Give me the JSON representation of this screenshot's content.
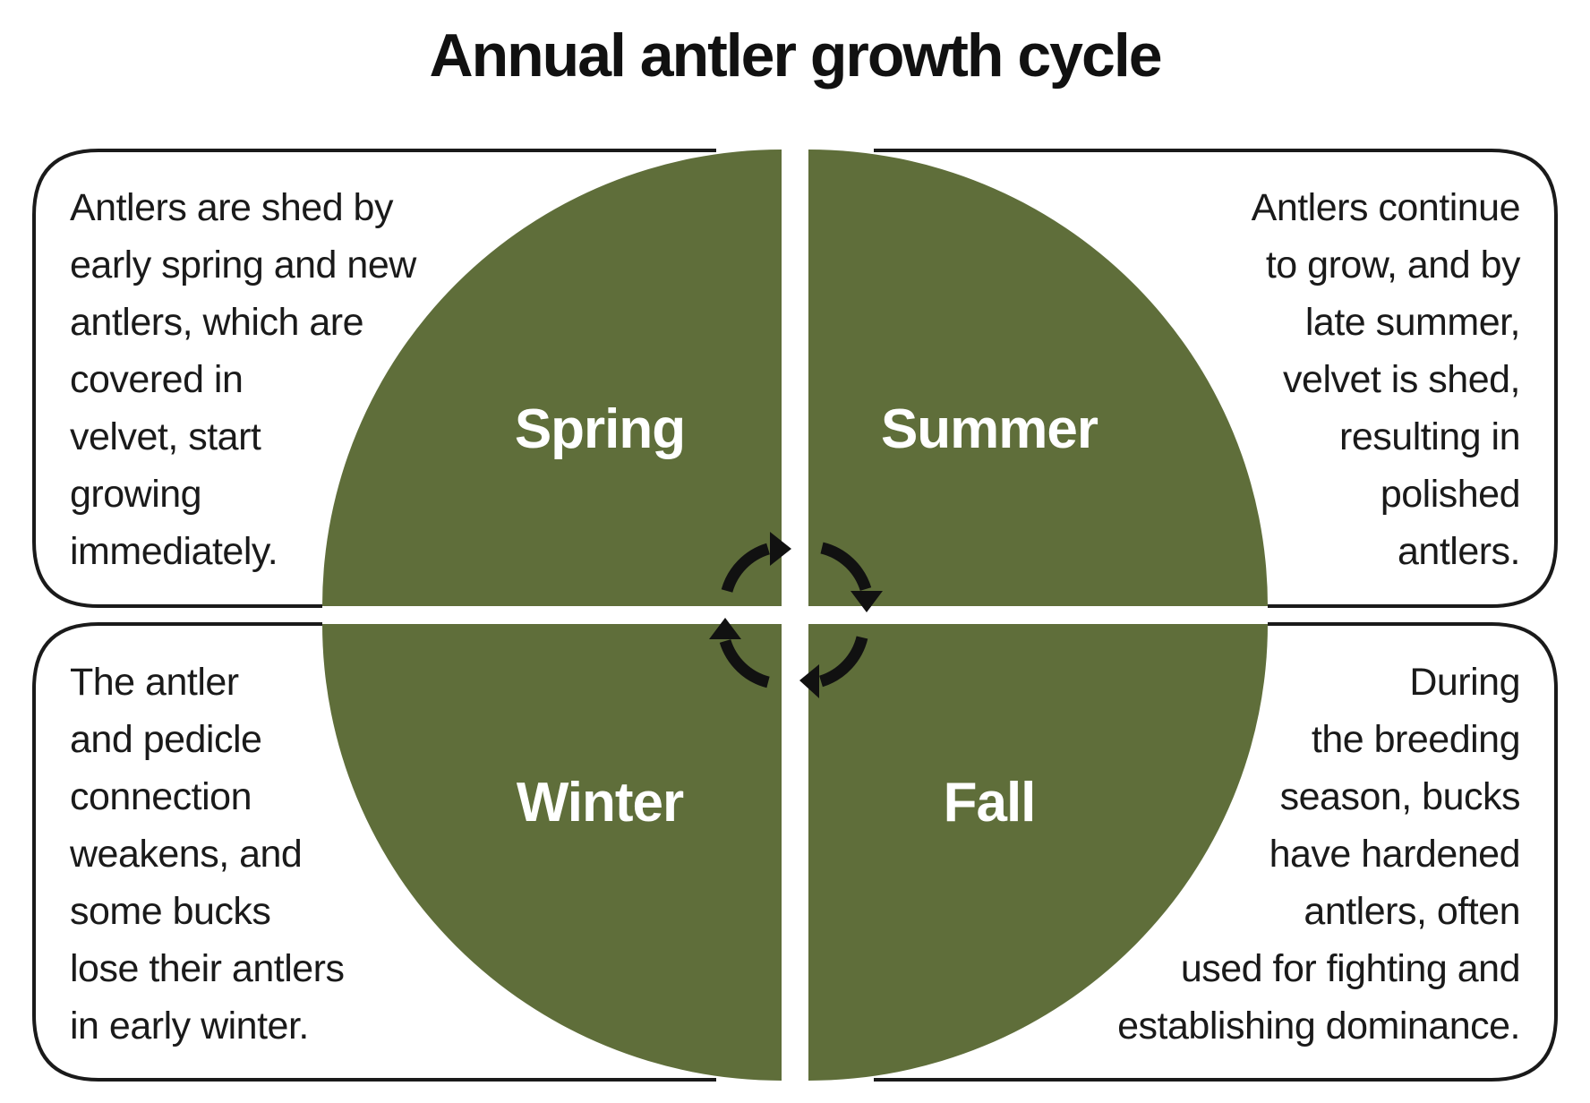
{
  "title": "Annual antler growth cycle",
  "colors": {
    "quadrant_fill": "#5f6e3a",
    "outline": "#1a1a1a",
    "background": "#ffffff"
  },
  "seasons": [
    {
      "name": "Spring",
      "description": "Antlers are shed by\nearly spring and new\nantlers, which are\ncovered in\nvelvet, start\ngrowing\nimmediately."
    },
    {
      "name": "Summer",
      "description": "Antlers continue\nto grow, and by\nlate summer,\nvelvet is shed,\nresulting in\npolished\nantlers."
    },
    {
      "name": "Fall",
      "description": "During\nthe breeding\nseason, bucks\nhave hardened\nantlers, often\nused for fighting and\nestablishing dominance."
    },
    {
      "name": "Winter",
      "description": "The antler\nand pedicle\nconnection\nweakens, and\nsome bucks\nlose their antlers\nin early winter."
    }
  ],
  "cycle_icon": "clockwise-cycle-arrows-icon"
}
